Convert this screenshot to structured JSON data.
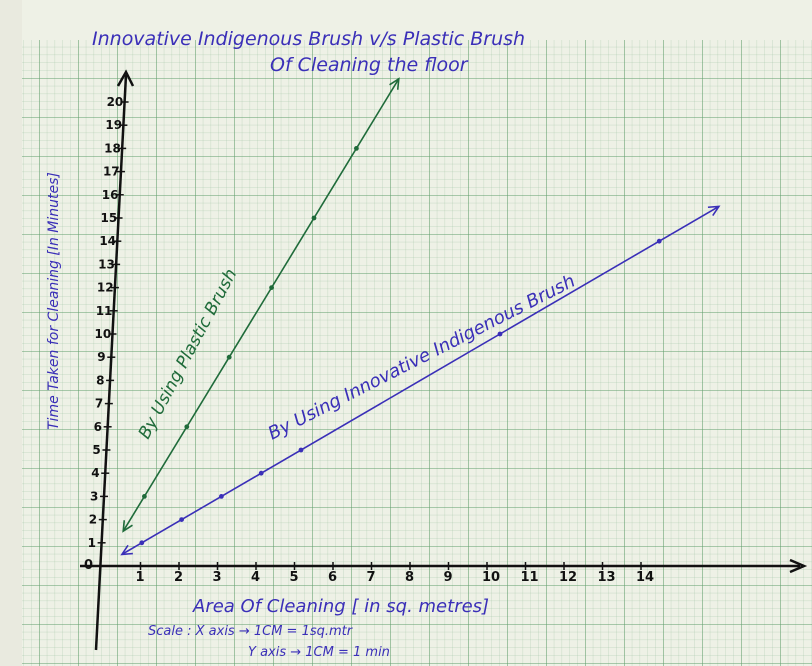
{
  "chart_data": {
    "type": "line",
    "title": "Innovative Indigenous Brush v/s Plastic Brush",
    "subtitle": "Of Cleaning the floor",
    "xlabel": "Area Of Cleaning [ in sq. metres]",
    "ylabel": "Time Taken for Cleaning [In Minutes]",
    "scale_lines": [
      "Scale : X axis → 1CM = 1sq.mtr",
      "Y axis → 1CM = 1 min"
    ],
    "origin_label": "0",
    "x_ticks": [
      "1",
      "2",
      "3",
      "4",
      "5",
      "6",
      "7",
      "8",
      "9",
      "10",
      "11",
      "12",
      "13",
      "14"
    ],
    "y_ticks": [
      "1",
      "2",
      "3",
      "4",
      "5",
      "6",
      "7",
      "8",
      "9",
      "10",
      "11",
      "12",
      "13",
      "14",
      "15",
      "16",
      "17",
      "18",
      "19",
      "20"
    ],
    "xlim": [
      0,
      15
    ],
    "ylim": [
      0,
      21
    ],
    "grid": true,
    "series": [
      {
        "name": "By Using Plastic Brush",
        "color": "#1f6b3a",
        "x": [
          1,
          2,
          3,
          4,
          5,
          6
        ],
        "y": [
          3,
          6,
          9,
          12,
          15,
          18
        ],
        "line_from": [
          0.5,
          1.5
        ],
        "line_to": [
          7,
          21
        ]
      },
      {
        "name": "By Using Innovative Indigenous Brush",
        "color": "#3a2fb8",
        "x": [
          1,
          2,
          3,
          4,
          5,
          10,
          14
        ],
        "y": [
          1,
          2,
          3,
          4,
          5,
          10,
          14
        ],
        "line_from": [
          0.5,
          0.5
        ],
        "line_to": [
          15.5,
          15.5
        ]
      }
    ]
  }
}
